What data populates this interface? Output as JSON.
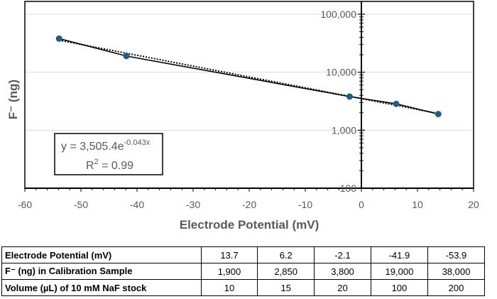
{
  "chart_data": {
    "type": "scatter",
    "xlabel": "Electrode Potential (mV)",
    "ylabel": "F⁻ (ng)",
    "xlim": [
      -60,
      20
    ],
    "ylim": [
      100,
      100000
    ],
    "y_scale": "log",
    "grid": "horizontal major gridlines",
    "x_ticks": [
      "-60",
      "-50",
      "-40",
      "-30",
      "-20",
      "-10",
      "0",
      "10",
      "20"
    ],
    "y_ticks": [
      "100",
      "1,000",
      "10,000",
      "100,000"
    ],
    "points": [
      {
        "x": -53.9,
        "y": 38000
      },
      {
        "x": -41.9,
        "y": 19000
      },
      {
        "x": -2.1,
        "y": 3800
      },
      {
        "x": 6.2,
        "y": 2850
      },
      {
        "x": 13.7,
        "y": 1900
      }
    ],
    "fit": {
      "type": "exponential",
      "a": 3505.4,
      "b": -0.043
    },
    "equation_main": "y = 3,505.4e",
    "equation_exp": "-0.043x",
    "r2_prefix": "R",
    "r2_sup": "2",
    "r2_suffix": " = 0.99",
    "colors": {
      "point": "#1f5c86",
      "line": "#000000",
      "grid": "#d9d9d9"
    }
  },
  "table": {
    "rows": [
      {
        "label": "Electrode Potential (mV)",
        "values": [
          "13.7",
          "6.2",
          "-2.1",
          "-41.9",
          "-53.9"
        ]
      },
      {
        "label": "F⁻ (ng) in  Calibration Sample",
        "values": [
          "1,900",
          "2,850",
          "3,800",
          "19,000",
          "38,000"
        ]
      },
      {
        "label": "Volume (µL) of 10 mM NaF stock",
        "values": [
          "10",
          "15",
          "20",
          "100",
          "200"
        ]
      }
    ]
  }
}
